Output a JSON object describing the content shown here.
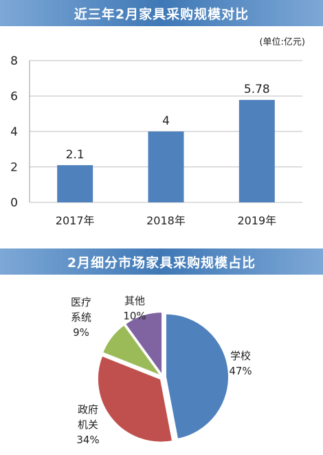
{
  "colors": {
    "bar": "#4f81bd",
    "banner": "#4a80be",
    "school": "#4f81bd",
    "government": "#c0504d",
    "medical": "#9bbb59",
    "other": "#8064a2"
  },
  "chart_data": [
    {
      "type": "bar",
      "title": "近三年2月家具采购规模对比",
      "unit": "(单位:亿元)",
      "categories": [
        "2017年",
        "2018年",
        "2019年"
      ],
      "values": [
        2.1,
        4,
        5.78
      ],
      "value_labels": [
        "2.1",
        "4",
        "5.78"
      ],
      "ylim": [
        0,
        8
      ],
      "yticks": [
        "0",
        "2",
        "4",
        "6",
        "8"
      ],
      "grid": true
    },
    {
      "type": "pie",
      "title": "2月细分市场家具采购规模占比",
      "slices": [
        {
          "label_lines": [
            "学校"
          ],
          "pct": "47%",
          "value": 47,
          "color": "#4f81bd"
        },
        {
          "label_lines": [
            "政府",
            "机关"
          ],
          "pct": "34%",
          "value": 34,
          "color": "#c0504d"
        },
        {
          "label_lines": [
            "医疗",
            "系统"
          ],
          "pct": "9%",
          "value": 9,
          "color": "#9bbb59"
        },
        {
          "label_lines": [
            "其他"
          ],
          "pct": "10%",
          "value": 10,
          "color": "#8064a2"
        }
      ]
    }
  ]
}
